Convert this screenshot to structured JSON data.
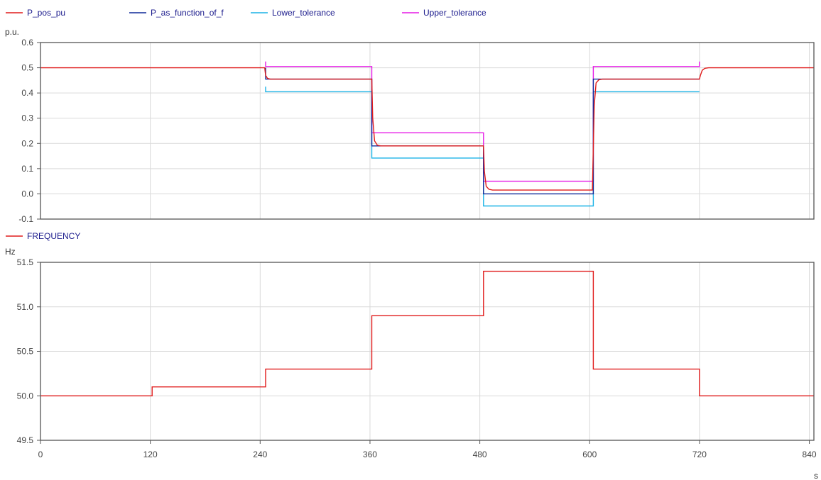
{
  "chart_data": [
    {
      "type": "line",
      "title": "",
      "xlabel": "",
      "ylabel": "p.u.",
      "xlim": [
        0,
        845
      ],
      "ylim": [
        -0.1,
        0.6
      ],
      "grid": true,
      "legend_placement": "top",
      "x_ticks": [
        0,
        120,
        240,
        360,
        480,
        600,
        720,
        840
      ],
      "y_ticks": [
        -0.1,
        0.0,
        0.1,
        0.2,
        0.3,
        0.4,
        0.5,
        0.6
      ],
      "y_tick_labels": [
        "-0.1",
        "0.0",
        "0.1",
        "0.2",
        "0.3",
        "0.4",
        "0.5",
        "0.6"
      ],
      "series": [
        {
          "name": "Lower_tolerance",
          "color": "#1ab2e6",
          "x": [
            246,
            246,
            362,
            362,
            484,
            484,
            604,
            604,
            720
          ],
          "y": [
            0.425,
            0.405,
            0.405,
            0.142,
            0.142,
            -0.048,
            -0.048,
            0.405,
            0.405
          ]
        },
        {
          "name": "Upper_tolerance",
          "color": "#e619e6",
          "x": [
            246,
            246,
            362,
            362,
            484,
            484,
            604,
            604,
            720,
            720
          ],
          "y": [
            0.525,
            0.505,
            0.505,
            0.242,
            0.242,
            0.05,
            0.05,
            0.505,
            0.505,
            0.525
          ]
        },
        {
          "name": "P_as_function_of_f",
          "color": "#0f2a99",
          "x": [
            246,
            246,
            362,
            362,
            484,
            484,
            604,
            604,
            720
          ],
          "y": [
            0.5,
            0.455,
            0.455,
            0.19,
            0.19,
            0.0,
            0.0,
            0.455,
            0.455
          ]
        },
        {
          "name": "P_pos_pu",
          "color": "#e01b1b",
          "x": [
            0,
            245,
            246,
            248,
            251,
            255,
            362,
            363,
            365,
            368,
            372,
            484,
            485,
            487,
            490,
            494,
            603,
            605,
            607,
            610,
            614,
            720,
            721,
            723,
            726,
            730,
            845
          ],
          "y": [
            0.5,
            0.5,
            0.47,
            0.458,
            0.455,
            0.455,
            0.455,
            0.3,
            0.21,
            0.193,
            0.19,
            0.19,
            0.09,
            0.03,
            0.018,
            0.015,
            0.015,
            0.35,
            0.44,
            0.452,
            0.455,
            0.455,
            0.47,
            0.49,
            0.498,
            0.5,
            0.5
          ]
        }
      ]
    },
    {
      "type": "line",
      "title": "",
      "xlabel": "s",
      "ylabel": "Hz",
      "xlim": [
        0,
        845
      ],
      "ylim": [
        49.5,
        51.5
      ],
      "grid": true,
      "legend_placement": "top",
      "x_ticks": [
        0,
        120,
        240,
        360,
        480,
        600,
        720,
        840
      ],
      "y_ticks": [
        49.5,
        50.0,
        50.5,
        51.0,
        51.5
      ],
      "y_tick_labels": [
        "49.5",
        "50.0",
        "50.5",
        "51.0",
        "51.5"
      ],
      "series": [
        {
          "name": "FREQUENCY",
          "color": "#e01b1b",
          "x": [
            0,
            122,
            122,
            246,
            246,
            362,
            362,
            484,
            484,
            604,
            604,
            720,
            720,
            845
          ],
          "y": [
            50.0,
            50.0,
            50.1,
            50.1,
            50.3,
            50.3,
            50.9,
            50.9,
            51.4,
            51.4,
            50.3,
            50.3,
            50.0,
            50.0
          ]
        }
      ]
    }
  ]
}
